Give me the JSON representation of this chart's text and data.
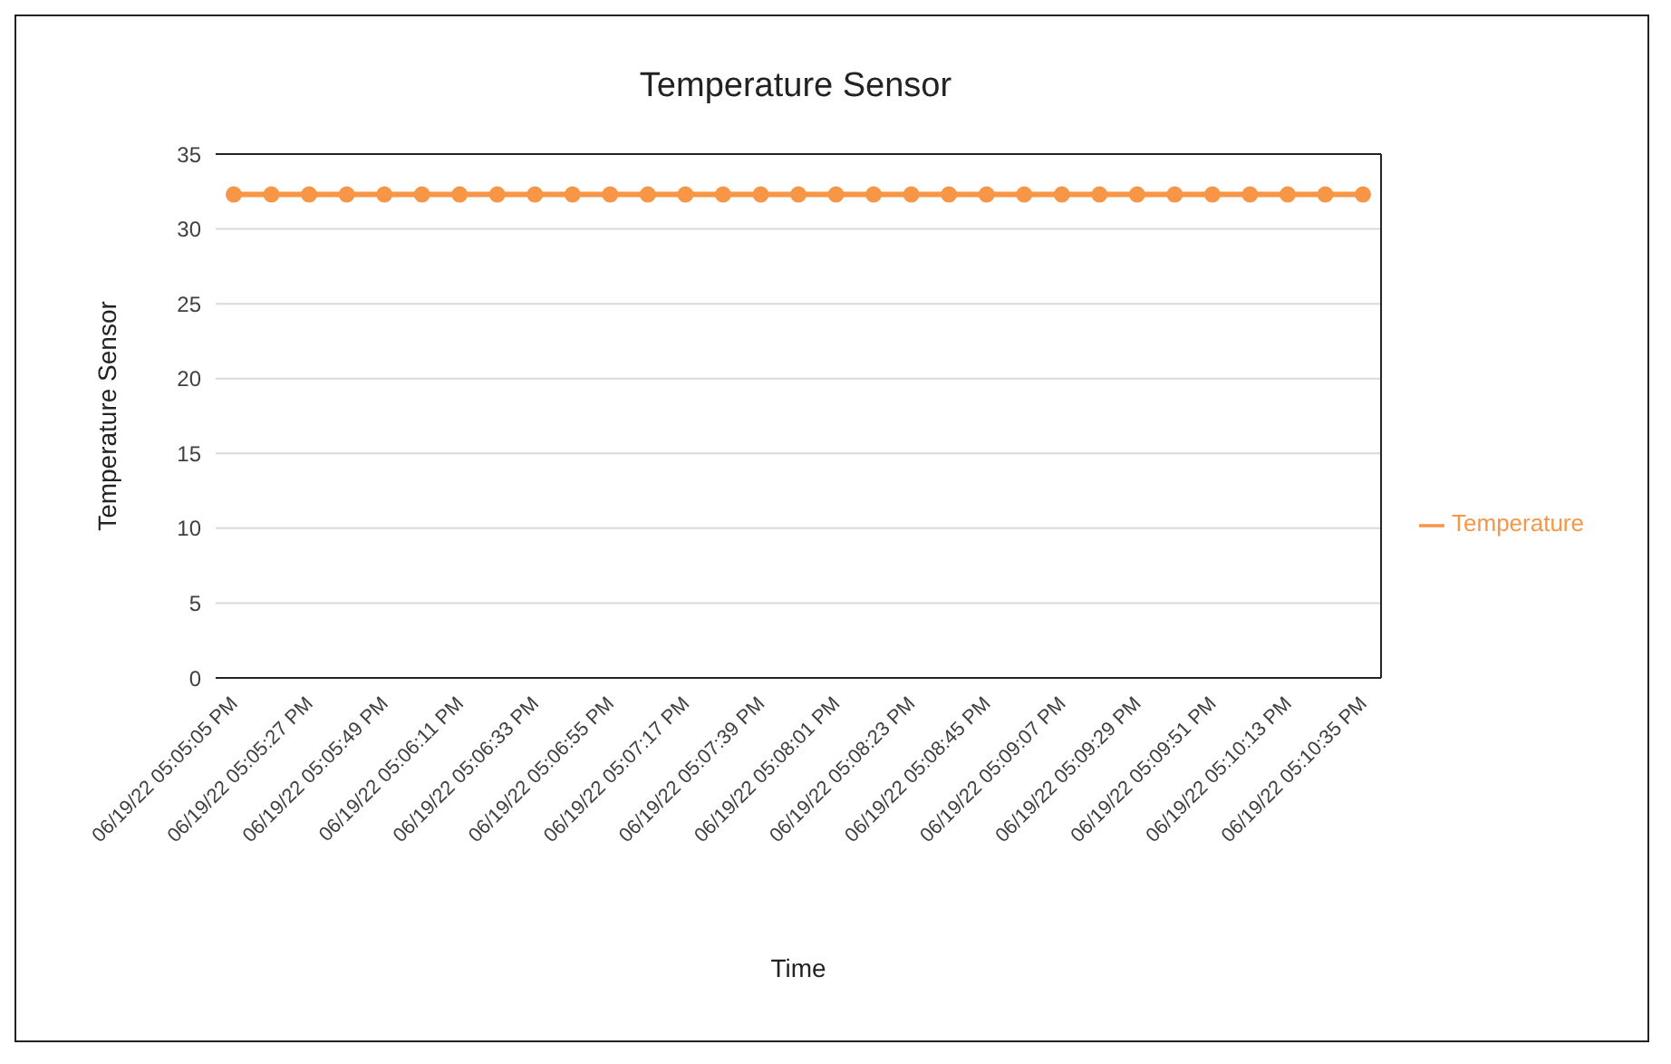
{
  "chart_data": {
    "type": "line",
    "title": "Temperature Sensor",
    "xlabel": "Time",
    "ylabel": "Temperature Sensor",
    "categories": [
      "06/19/22 05:05:05 PM",
      null,
      "06/19/22 05:05:27 PM",
      null,
      "06/19/22 05:05:49 PM",
      null,
      "06/19/22 05:06:11 PM",
      null,
      "06/19/22 05:06:33 PM",
      null,
      "06/19/22 05:06:55 PM",
      null,
      "06/19/22 05:07:17 PM",
      null,
      "06/19/22 05:07:39 PM",
      null,
      "06/19/22 05:08:01 PM",
      null,
      "06/19/22 05:08:23 PM",
      null,
      "06/19/22 05:08:45 PM",
      null,
      "06/19/22 05:09:07 PM",
      null,
      "06/19/22 05:09:29 PM",
      null,
      "06/19/22 05:09:51 PM",
      null,
      "06/19/22 05:10:13 PM",
      null,
      "06/19/22 05:10:35 PM"
    ],
    "series": [
      {
        "name": "Temperature",
        "color": "#f79646",
        "values": [
          32.3,
          32.3,
          32.3,
          32.3,
          32.3,
          32.3,
          32.3,
          32.3,
          32.3,
          32.3,
          32.3,
          32.3,
          32.3,
          32.3,
          32.3,
          32.3,
          32.3,
          32.3,
          32.3,
          32.3,
          32.3,
          32.3,
          32.3,
          32.3,
          32.3,
          32.3,
          32.3,
          32.3,
          32.3,
          32.3,
          32.3
        ]
      }
    ],
    "ylim": [
      0,
      35
    ],
    "yticks": [
      0,
      5,
      10,
      15,
      20,
      25,
      30,
      35
    ],
    "grid": "y",
    "legend": "right",
    "marker": "circle",
    "line_style": "solid"
  }
}
